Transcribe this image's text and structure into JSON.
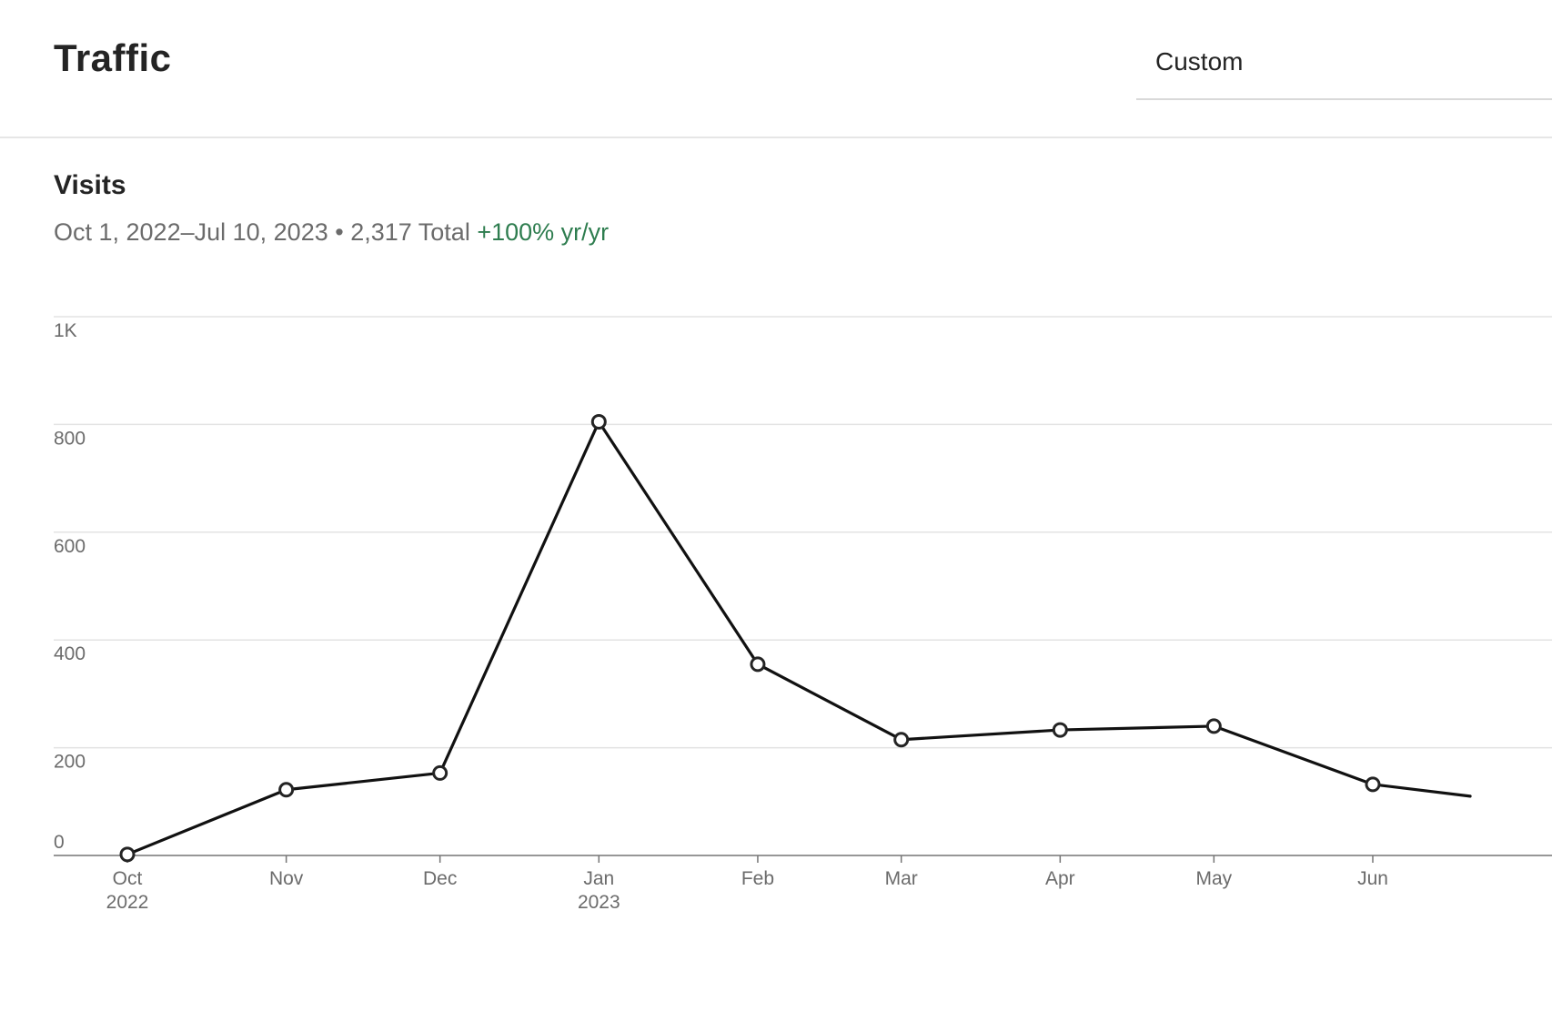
{
  "header": {
    "title": "Traffic",
    "range_select": {
      "selected": "Custom"
    }
  },
  "section": {
    "title": "Visits",
    "date_range": "Oct 1, 2022–Jul 10, 2023",
    "separator": " • ",
    "total": "2,317 Total",
    "growth": "+100% yr/yr",
    "growth_color": "#2e7d4f"
  },
  "chart_data": {
    "type": "line",
    "title": "",
    "xlabel": "",
    "ylabel": "",
    "ylim": [
      0,
      1000
    ],
    "grid": true,
    "y_ticks": [
      {
        "value": 0,
        "label": "0"
      },
      {
        "value": 200,
        "label": "200"
      },
      {
        "value": 400,
        "label": "400"
      },
      {
        "value": 600,
        "label": "600"
      },
      {
        "value": 800,
        "label": "800"
      },
      {
        "value": 1000,
        "label": "1K"
      }
    ],
    "categories": [
      {
        "month": "Oct",
        "year": "2022"
      },
      {
        "month": "Nov",
        "year": ""
      },
      {
        "month": "Dec",
        "year": ""
      },
      {
        "month": "Jan",
        "year": "2023"
      },
      {
        "month": "Feb",
        "year": ""
      },
      {
        "month": "Mar",
        "year": ""
      },
      {
        "month": "Apr",
        "year": ""
      },
      {
        "month": "May",
        "year": ""
      },
      {
        "month": "Jun",
        "year": ""
      }
    ],
    "x_dates": [
      "2022-10-01",
      "2022-11-01",
      "2022-12-01",
      "2023-01-01",
      "2023-02-01",
      "2023-03-01",
      "2023-04-01",
      "2023-05-01",
      "2023-06-01"
    ],
    "series": [
      {
        "values": [
          2,
          122,
          153,
          805,
          355,
          215,
          233,
          240,
          132
        ],
        "color": "#111111"
      }
    ],
    "line_continues_past": {
      "date": "2023-06-20",
      "value": 110
    }
  }
}
